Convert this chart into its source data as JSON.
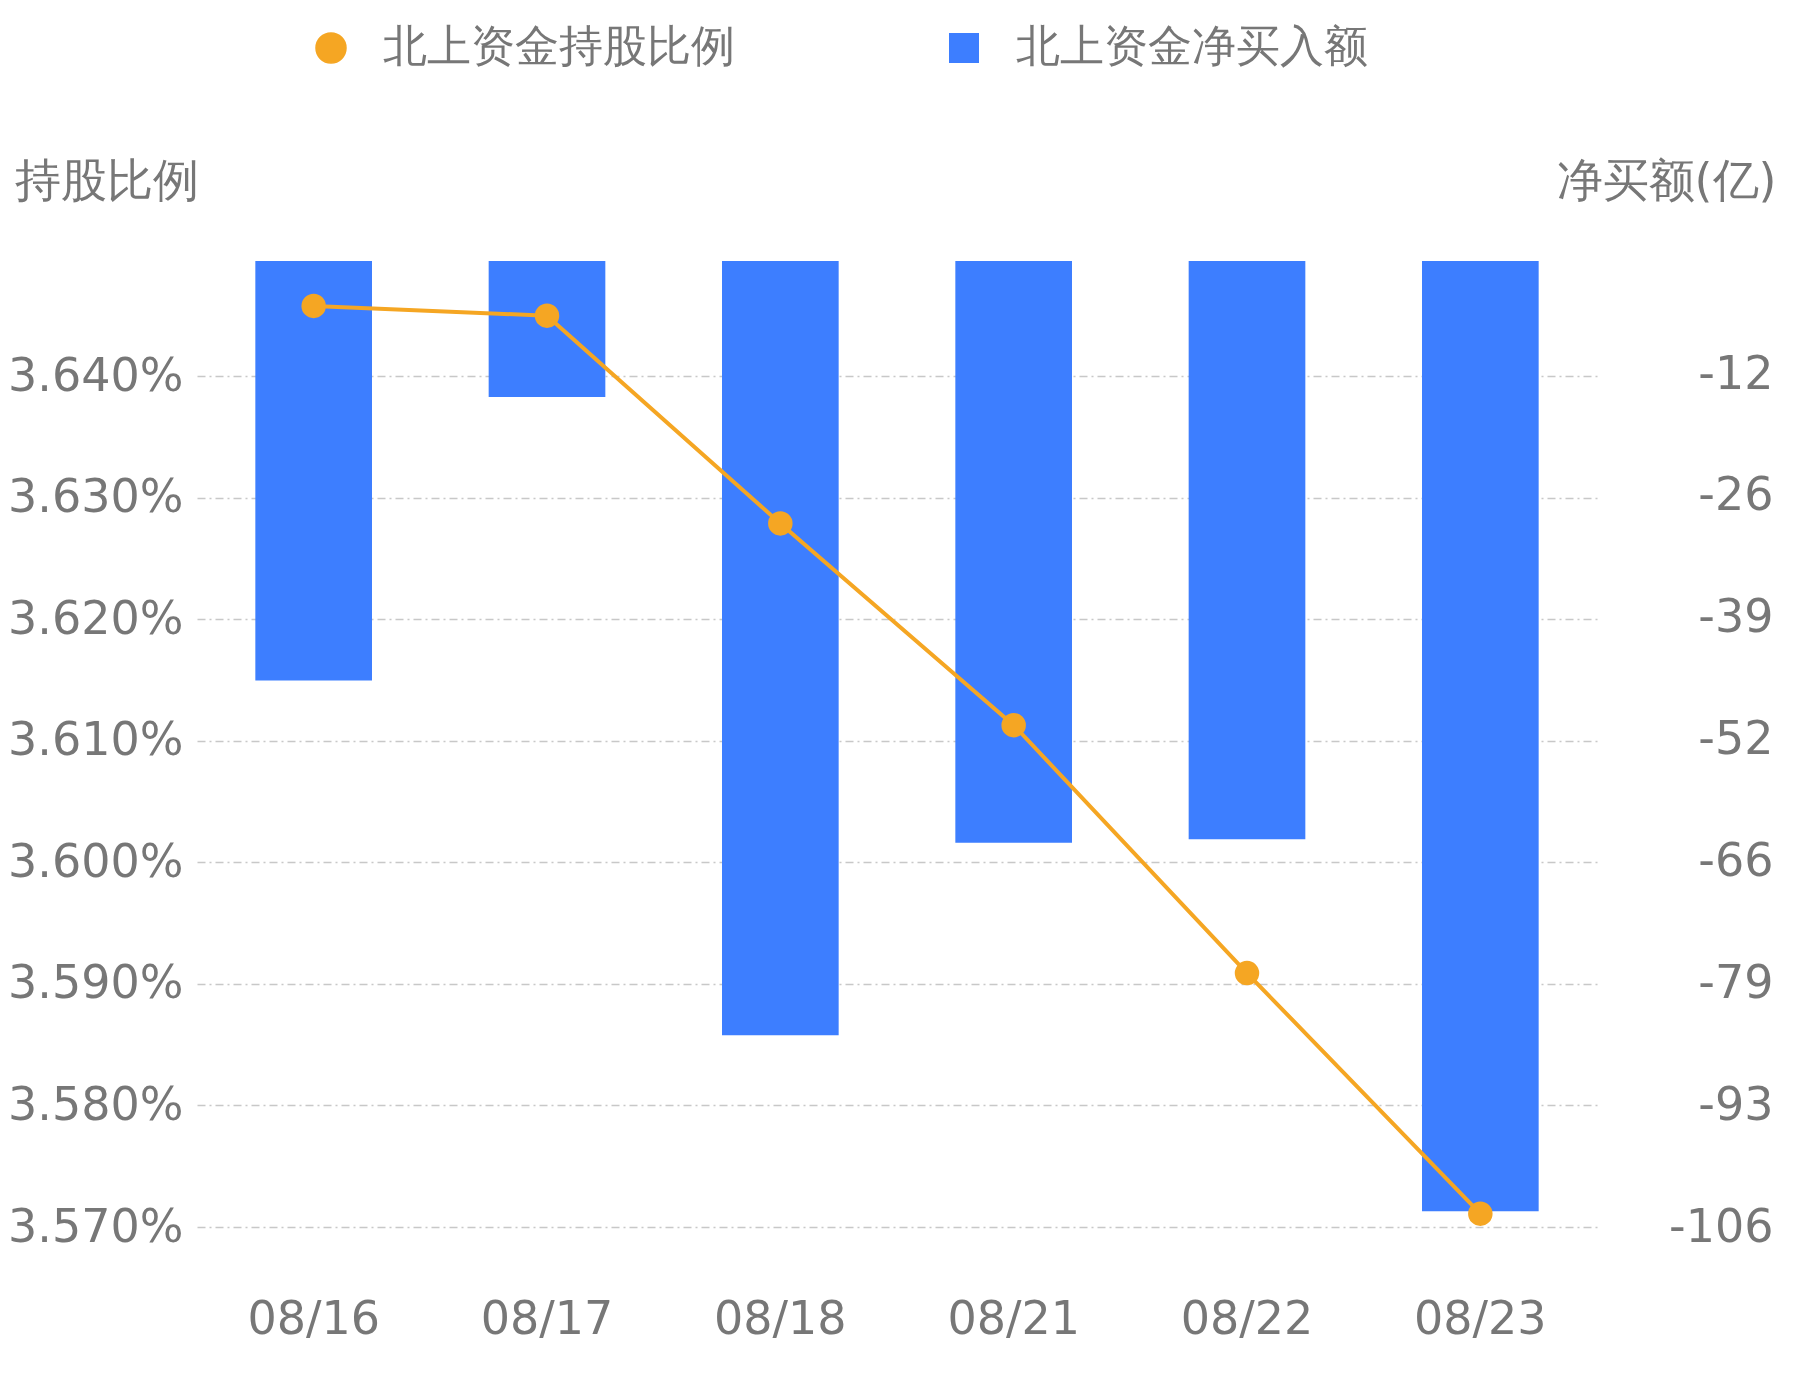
{
  "chart_data": {
    "type": "bar",
    "ylabel": "持股比例",
    "y2label": "净买额(亿)",
    "categories": [
      "08/16",
      "08/17",
      "08/18",
      "08/21",
      "08/22",
      "08/23"
    ],
    "series": [
      {
        "name": "北上资金持股比例",
        "type": "line",
        "color": "#f5a623",
        "values": [
          3.6458,
          3.645,
          3.6279,
          3.6113,
          3.5909,
          3.5711
        ]
      },
      {
        "name": "北上资金净买入额",
        "axis": "y2",
        "color": "#3d7eff",
        "values": [
          -46.0,
          -14.9,
          -84.9,
          -63.8,
          -63.4,
          -104.2
        ]
      }
    ],
    "ylim": [
      3.57,
      3.6495
    ],
    "yticks": [
      {
        "value": 3.57,
        "label": "3.570%"
      },
      {
        "value": 3.58,
        "label": "3.580%"
      },
      {
        "value": 3.59,
        "label": "3.590%"
      },
      {
        "value": 3.6,
        "label": "3.600%"
      },
      {
        "value": 3.61,
        "label": "3.610%"
      },
      {
        "value": 3.62,
        "label": "3.620%"
      },
      {
        "value": 3.63,
        "label": "3.630%"
      },
      {
        "value": 3.64,
        "label": "3.640%"
      }
    ],
    "y2lim": [
      -105.92,
      0
    ],
    "y2ticks": [
      {
        "value": -105.92,
        "label": "-106"
      },
      {
        "value": -92.56,
        "label": "-93"
      },
      {
        "value": -79.2,
        "label": "-79"
      },
      {
        "value": -65.84,
        "label": "-66"
      },
      {
        "value": -52.48,
        "label": "-52"
      },
      {
        "value": -39.12,
        "label": "-39"
      },
      {
        "value": -25.76,
        "label": "-26"
      },
      {
        "value": -12.4,
        "label": "-12"
      }
    ],
    "grid": "y",
    "legend": "top",
    "marker": "circle",
    "line_style": "solid"
  }
}
